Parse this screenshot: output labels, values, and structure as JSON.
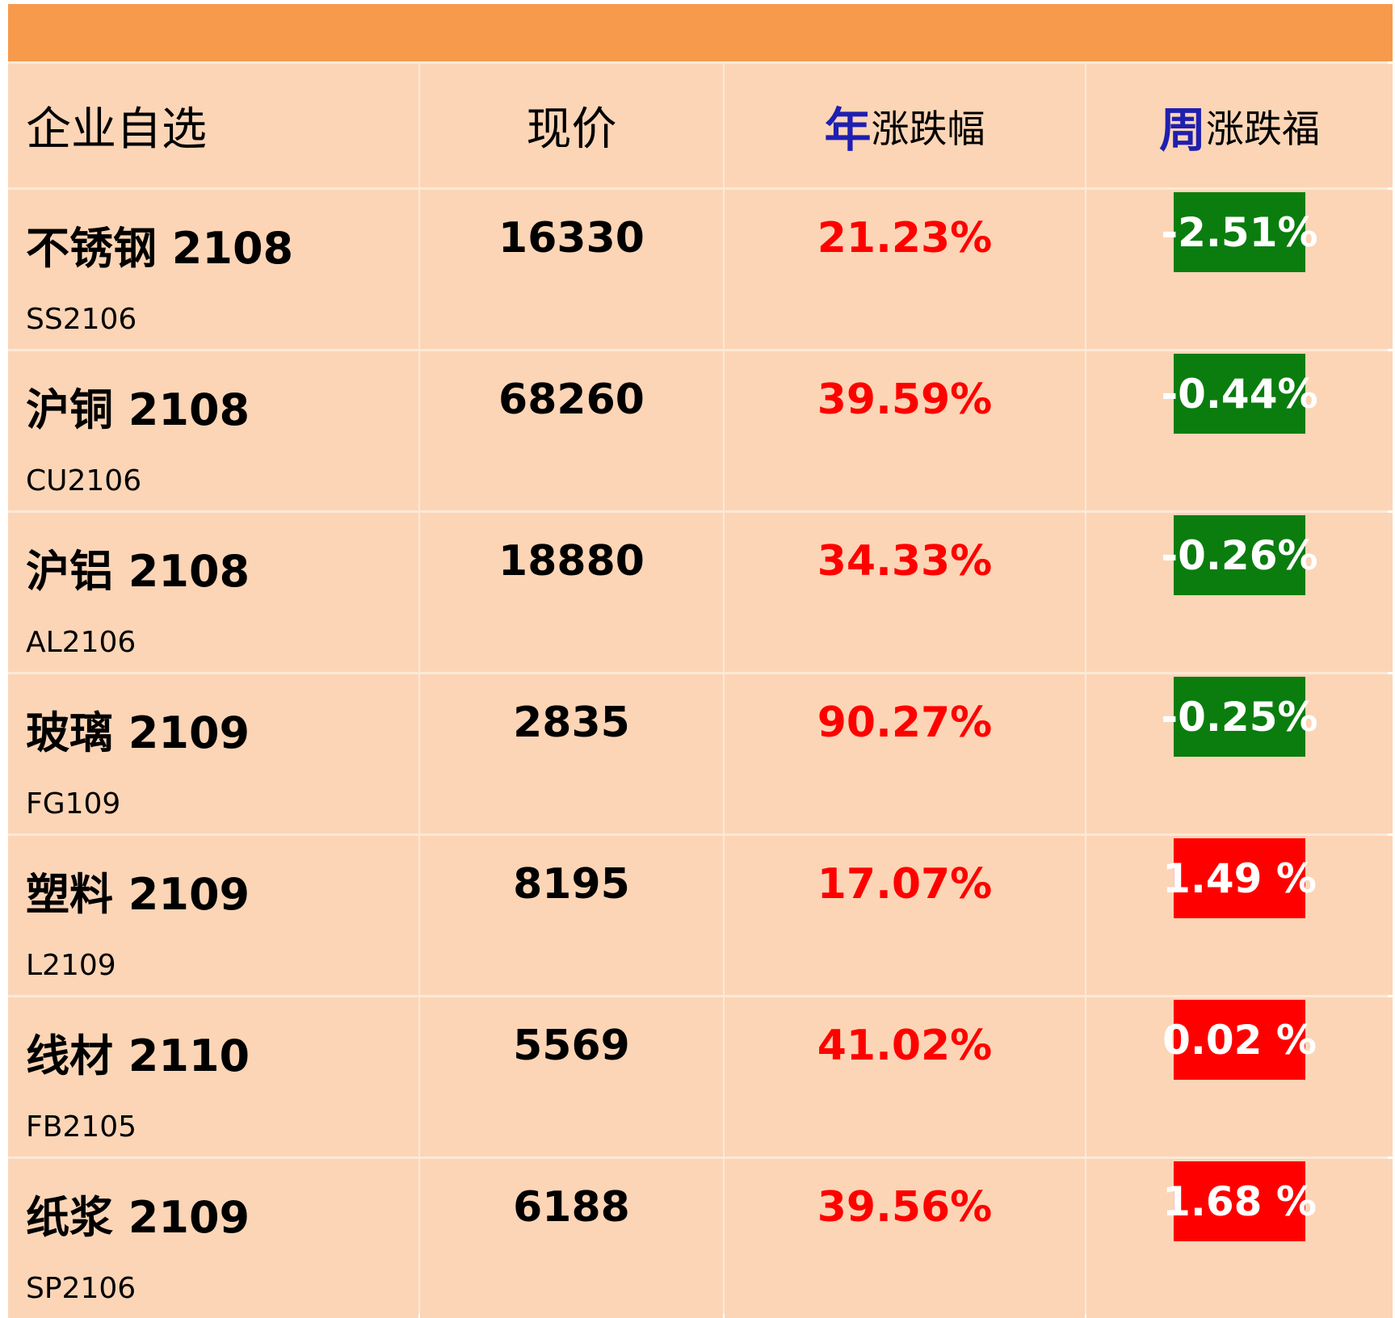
{
  "header": {
    "col_name": "企业自选",
    "col_price": "现价",
    "col_year_big": "年",
    "col_year_small": "涨跌幅",
    "col_week_big": "周",
    "col_week_small": "涨跌福"
  },
  "colors": {
    "top_bar": "#f79a4b",
    "cell_bg": "#fcd5b6",
    "header_accent": "#1f1fb0",
    "year_change": "#ff0000",
    "week_down": "#0a7d0e",
    "week_up": "#ff0000"
  },
  "rows": [
    {
      "name": "不锈钢 2108",
      "code": "SS2106",
      "price": "16330",
      "year": "21.23%",
      "week": "-2.51%",
      "week_dir": "down"
    },
    {
      "name": "沪铜 2108",
      "code": "CU2106",
      "price": "68260",
      "year": "39.59%",
      "week": "-0.44%",
      "week_dir": "down"
    },
    {
      "name": "沪铝 2108",
      "code": "AL2106",
      "price": "18880",
      "year": "34.33%",
      "week": "-0.26%",
      "week_dir": "down"
    },
    {
      "name": "玻璃 2109",
      "code": "FG109",
      "price": "2835",
      "year": "90.27%",
      "week": "-0.25%",
      "week_dir": "down"
    },
    {
      "name": "塑料 2109",
      "code": "L2109",
      "price": "8195",
      "year": "17.07%",
      "week": "1.49 %",
      "week_dir": "up"
    },
    {
      "name": "线材 2110",
      "code": "FB2105",
      "price": "5569",
      "year": "41.02%",
      "week": "0.02 %",
      "week_dir": "up"
    },
    {
      "name": "纸浆 2109",
      "code": "SP2106",
      "price": "6188",
      "year": "39.56%",
      "week": "1.68 %",
      "week_dir": "up"
    }
  ]
}
